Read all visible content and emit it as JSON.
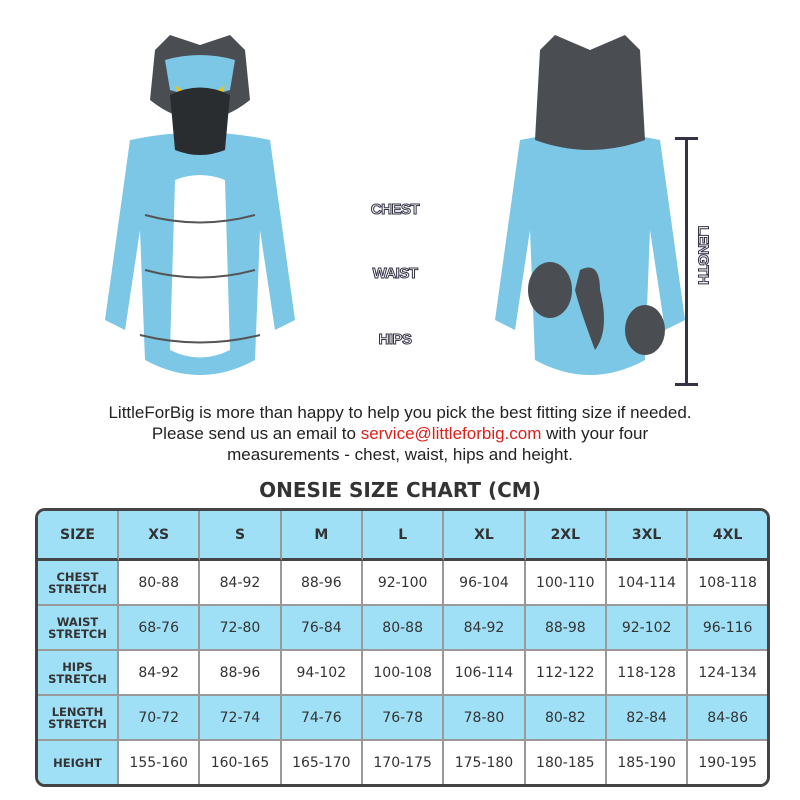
{
  "product_labels": {
    "chest": "CHEST",
    "waist": "WAIST",
    "hips": "HIPS",
    "length": "LENGTH"
  },
  "message": {
    "line1": "LittleForBig is more than happy to help you pick the best fitting size if needed.",
    "line2_pre": "Please send us an email to ",
    "email": "service@littleforbig.com",
    "line2_post": " with your four",
    "line3": "measurements - chest, waist, hips and height."
  },
  "colors": {
    "header_bg": "#9fe0f6",
    "email": "#e0201b",
    "onesie_blue": "#7cc6e6",
    "onesie_gray": "#4a4e52"
  },
  "table": {
    "title": "ONESIE SIZE CHART (CM)",
    "corner": "SIZE",
    "sizes": [
      "XS",
      "S",
      "M",
      "L",
      "XL",
      "2XL",
      "3XL",
      "4XL"
    ],
    "rows": [
      {
        "label1": "CHEST",
        "label2": "STRETCH",
        "values": [
          "80-88",
          "84-92",
          "88-96",
          "92-100",
          "96-104",
          "100-110",
          "104-114",
          "108-118"
        ]
      },
      {
        "label1": "WAIST",
        "label2": "STRETCH",
        "values": [
          "68-76",
          "72-80",
          "76-84",
          "80-88",
          "84-92",
          "88-98",
          "92-102",
          "96-116"
        ]
      },
      {
        "label1": "HIPS",
        "label2": "STRETCH",
        "values": [
          "84-92",
          "88-96",
          "94-102",
          "100-108",
          "106-114",
          "112-122",
          "118-128",
          "124-134"
        ]
      },
      {
        "label1": "LENGTH",
        "label2": "STRETCH",
        "values": [
          "70-72",
          "72-74",
          "74-76",
          "76-78",
          "78-80",
          "80-82",
          "82-84",
          "84-86"
        ]
      },
      {
        "label1": "HEIGHT",
        "label2": "",
        "values": [
          "155-160",
          "160-165",
          "165-170",
          "170-175",
          "175-180",
          "180-185",
          "185-190",
          "190-195"
        ]
      }
    ]
  }
}
